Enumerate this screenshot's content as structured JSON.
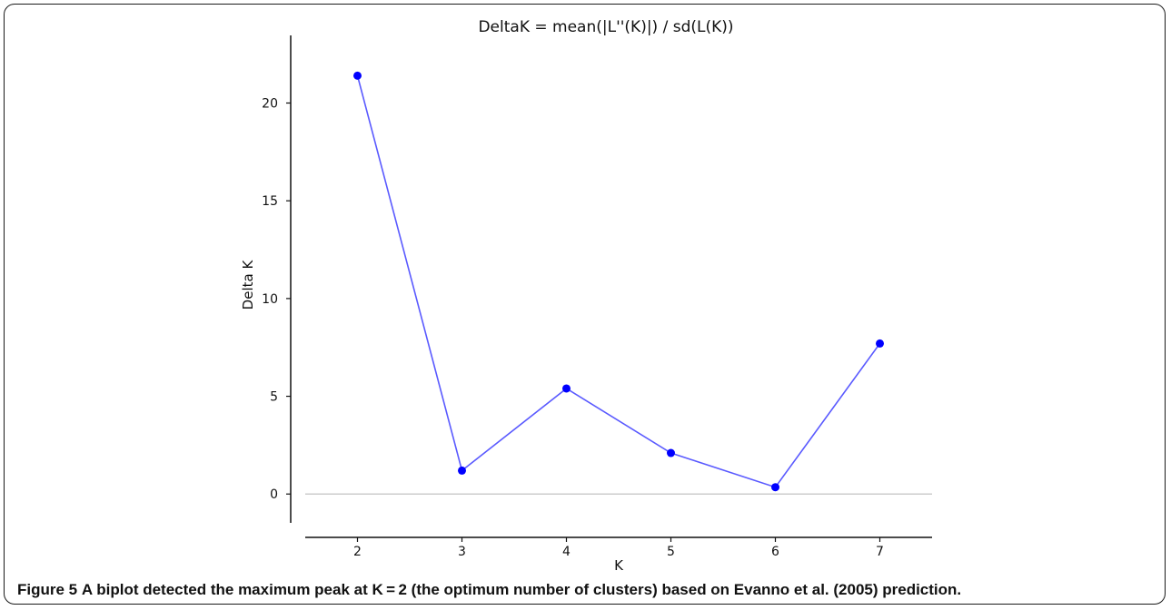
{
  "chart_data": {
    "type": "line",
    "title": "DeltaK = mean(|L''(K)|) / sd(L(K))",
    "xlabel": "K",
    "ylabel": "Delta K",
    "x": [
      2,
      3,
      4,
      5,
      6,
      7
    ],
    "series": [
      {
        "values": [
          21.4,
          1.2,
          5.4,
          2.1,
          0.35,
          7.7
        ],
        "color": "#0000ff"
      }
    ],
    "xlim": [
      1.5,
      7.5
    ],
    "ylim": [
      -1.8,
      23.6
    ],
    "x_ticks": [
      2,
      3,
      4,
      5,
      6,
      7
    ],
    "y_ticks": [
      0,
      5,
      10,
      15,
      20
    ],
    "zero_line": true,
    "zero_line_color": "#cccccc",
    "line_color": "#5a5aff",
    "marker_color": "#0000ff",
    "grid": false,
    "legend": "none"
  },
  "caption": {
    "label": "Figure 5",
    "text": "A biplot detected the maximum peak at K = 2 (the optimum number of clusters) based on Evanno et al. (2005) prediction."
  }
}
